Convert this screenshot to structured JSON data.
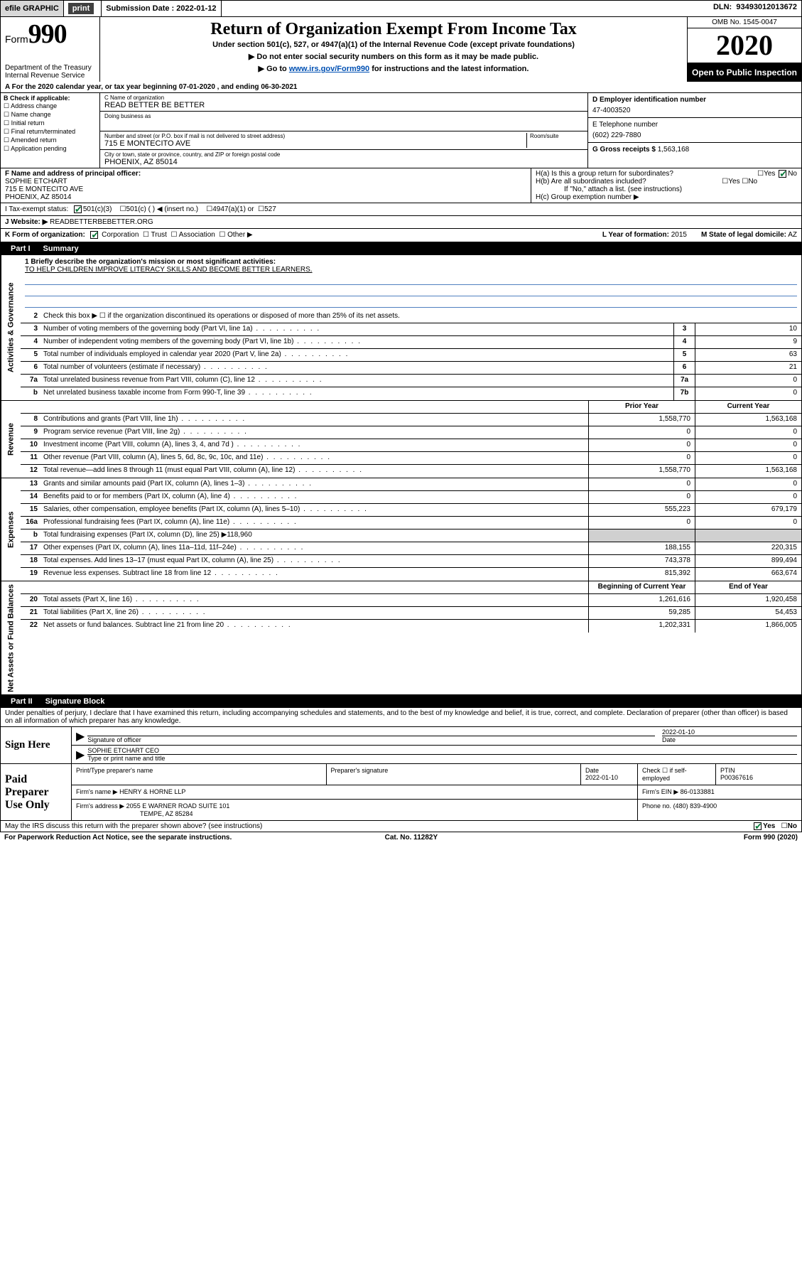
{
  "topbar": {
    "efile": "efile GRAPHIC",
    "print_btn": "print",
    "sub_label": "Submission Date :",
    "sub_date": "2022-01-12",
    "dln_label": "DLN:",
    "dln": "93493012013672"
  },
  "header": {
    "form_word": "Form",
    "form_num": "990",
    "dept": "Department of the Treasury\nInternal Revenue Service",
    "title": "Return of Organization Exempt From Income Tax",
    "sub1": "Under section 501(c), 527, or 4947(a)(1) of the Internal Revenue Code (except private foundations)",
    "sub2": "▶ Do not enter social security numbers on this form as it may be made public.",
    "sub3_pre": "▶ Go to ",
    "sub3_link": "www.irs.gov/Form990",
    "sub3_post": " for instructions and the latest information.",
    "omb": "OMB No. 1545-0047",
    "year": "2020",
    "inspection": "Open to Public Inspection"
  },
  "line_a": "A For the 2020 calendar year, or tax year beginning 07-01-2020    , and ending 06-30-2021",
  "col_b": {
    "hdr": "B Check if applicable:",
    "opts": [
      "Address change",
      "Name change",
      "Initial return",
      "Final return/terminated",
      "Amended return",
      "Application pending"
    ]
  },
  "col_c": {
    "name_lbl": "C Name of organization",
    "name": "READ BETTER BE BETTER",
    "dba_lbl": "Doing business as",
    "dba": "",
    "addr_lbl": "Number and street (or P.O. box if mail is not delivered to street address)",
    "room_lbl": "Room/suite",
    "addr": "715 E MONTECITO AVE",
    "city_lbl": "City or town, state or province, country, and ZIP or foreign postal code",
    "city": "PHOENIX, AZ  85014"
  },
  "col_de": {
    "d_lbl": "D Employer identification number",
    "d_val": "47-4003520",
    "e_lbl": "E Telephone number",
    "e_val": "(602) 229-7880",
    "g_lbl": "G Gross receipts $",
    "g_val": "1,563,168"
  },
  "col_f": {
    "lbl": "F Name and address of principal officer:",
    "name": "SOPHIE ETCHART",
    "addr1": "715 E MONTECITO AVE",
    "addr2": "PHOENIX, AZ  85014"
  },
  "col_h": {
    "ha": "H(a)  Is this a group return for subordinates?",
    "hb": "H(b)  Are all subordinates included?",
    "hb_note": "If \"No,\" attach a list. (see instructions)",
    "hc": "H(c)  Group exemption number ▶",
    "yes": "Yes",
    "no": "No"
  },
  "row_i": {
    "lbl": "I   Tax-exempt status:",
    "o1": "501(c)(3)",
    "o2": "501(c) (  ) ◀ (insert no.)",
    "o3": "4947(a)(1) or",
    "o4": "527"
  },
  "row_j": {
    "lbl": "J   Website: ▶",
    "val": "READBETTERBEBETTER.ORG"
  },
  "row_k": {
    "lbl": "K Form of organization:",
    "o1": "Corporation",
    "o2": "Trust",
    "o3": "Association",
    "o4": "Other ▶",
    "l_lbl": "L Year of formation:",
    "l_val": "2015",
    "m_lbl": "M State of legal domicile:",
    "m_val": "AZ"
  },
  "part1": {
    "num": "Part I",
    "title": "Summary"
  },
  "vtabs": {
    "gov": "Activities & Governance",
    "rev": "Revenue",
    "exp": "Expenses",
    "net": "Net Assets or Fund Balances"
  },
  "mission": {
    "q": "1  Briefly describe the organization's mission or most significant activities:",
    "a": "TO HELP CHILDREN IMPROVE LITERACY SKILLS AND BECOME BETTER LEARNERS."
  },
  "gov_rows": [
    {
      "n": "2",
      "t": "Check this box ▶ ☐  if the organization discontinued its operations or disposed of more than 25% of its net assets."
    },
    {
      "n": "3",
      "t": "Number of voting members of the governing body (Part VI, line 1a)",
      "box": "3",
      "v": "10"
    },
    {
      "n": "4",
      "t": "Number of independent voting members of the governing body (Part VI, line 1b)",
      "box": "4",
      "v": "9"
    },
    {
      "n": "5",
      "t": "Total number of individuals employed in calendar year 2020 (Part V, line 2a)",
      "box": "5",
      "v": "63"
    },
    {
      "n": "6",
      "t": "Total number of volunteers (estimate if necessary)",
      "box": "6",
      "v": "21"
    },
    {
      "n": "7a",
      "t": "Total unrelated business revenue from Part VIII, column (C), line 12",
      "box": "7a",
      "v": "0"
    },
    {
      "n": "b",
      "t": "Net unrelated business taxable income from Form 990-T, line 39",
      "box": "7b",
      "v": "0"
    }
  ],
  "two_col_hdr": {
    "py": "Prior Year",
    "cy": "Current Year"
  },
  "rev_rows": [
    {
      "n": "8",
      "t": "Contributions and grants (Part VIII, line 1h)",
      "py": "1,558,770",
      "cy": "1,563,168"
    },
    {
      "n": "9",
      "t": "Program service revenue (Part VIII, line 2g)",
      "py": "0",
      "cy": "0"
    },
    {
      "n": "10",
      "t": "Investment income (Part VIII, column (A), lines 3, 4, and 7d )",
      "py": "0",
      "cy": "0"
    },
    {
      "n": "11",
      "t": "Other revenue (Part VIII, column (A), lines 5, 6d, 8c, 9c, 10c, and 11e)",
      "py": "0",
      "cy": "0"
    },
    {
      "n": "12",
      "t": "Total revenue—add lines 8 through 11 (must equal Part VIII, column (A), line 12)",
      "py": "1,558,770",
      "cy": "1,563,168"
    }
  ],
  "exp_rows": [
    {
      "n": "13",
      "t": "Grants and similar amounts paid (Part IX, column (A), lines 1–3)",
      "py": "0",
      "cy": "0"
    },
    {
      "n": "14",
      "t": "Benefits paid to or for members (Part IX, column (A), line 4)",
      "py": "0",
      "cy": "0"
    },
    {
      "n": "15",
      "t": "Salaries, other compensation, employee benefits (Part IX, column (A), lines 5–10)",
      "py": "555,223",
      "cy": "679,179"
    },
    {
      "n": "16a",
      "t": "Professional fundraising fees (Part IX, column (A), line 11e)",
      "py": "0",
      "cy": "0"
    },
    {
      "n": "b",
      "t": "Total fundraising expenses (Part IX, column (D), line 25) ▶118,960",
      "noval": true
    },
    {
      "n": "17",
      "t": "Other expenses (Part IX, column (A), lines 11a–11d, 11f–24e)",
      "py": "188,155",
      "cy": "220,315"
    },
    {
      "n": "18",
      "t": "Total expenses. Add lines 13–17 (must equal Part IX, column (A), line 25)",
      "py": "743,378",
      "cy": "899,494"
    },
    {
      "n": "19",
      "t": "Revenue less expenses. Subtract line 18 from line 12",
      "py": "815,392",
      "cy": "663,674"
    }
  ],
  "net_hdr": {
    "py": "Beginning of Current Year",
    "cy": "End of Year"
  },
  "net_rows": [
    {
      "n": "20",
      "t": "Total assets (Part X, line 16)",
      "py": "1,261,616",
      "cy": "1,920,458"
    },
    {
      "n": "21",
      "t": "Total liabilities (Part X, line 26)",
      "py": "59,285",
      "cy": "54,453"
    },
    {
      "n": "22",
      "t": "Net assets or fund balances. Subtract line 21 from line 20",
      "py": "1,202,331",
      "cy": "1,866,005"
    }
  ],
  "part2": {
    "num": "Part II",
    "title": "Signature Block"
  },
  "sig_intro": "Under penalties of perjury, I declare that I have examined this return, including accompanying schedules and statements, and to the best of my knowledge and belief, it is true, correct, and complete. Declaration of preparer (other than officer) is based on all information of which preparer has any knowledge.",
  "sign_here": {
    "lbl": "Sign Here",
    "sig_lbl": "Signature of officer",
    "date_lbl": "Date",
    "date": "2022-01-10",
    "name": "SOPHIE ETCHART CEO",
    "name_lbl": "Type or print name and title"
  },
  "paid_prep": {
    "lbl": "Paid Preparer Use Only",
    "r1": {
      "c1": "Print/Type preparer's name",
      "c2": "Preparer's signature",
      "c3": "Date",
      "c3v": "2022-01-10",
      "c4": "Check ☐ if self-employed",
      "c5": "PTIN",
      "c5v": "P00367616"
    },
    "r2": {
      "lbl": "Firm's name    ▶",
      "val": "HENRY & HORNE LLP",
      "ein_lbl": "Firm's EIN ▶",
      "ein": "86-0133881"
    },
    "r3": {
      "lbl": "Firm's address ▶",
      "val": "2055 E WARNER ROAD SUITE 101",
      "city": "TEMPE, AZ  85284",
      "ph_lbl": "Phone no.",
      "ph": "(480) 839-4900"
    }
  },
  "bottom": {
    "q": "May the IRS discuss this return with the preparer shown above? (see instructions)",
    "yes": "Yes",
    "no": "No"
  },
  "footer": {
    "l": "For Paperwork Reduction Act Notice, see the separate instructions.",
    "m": "Cat. No. 11282Y",
    "r": "Form 990 (2020)"
  }
}
